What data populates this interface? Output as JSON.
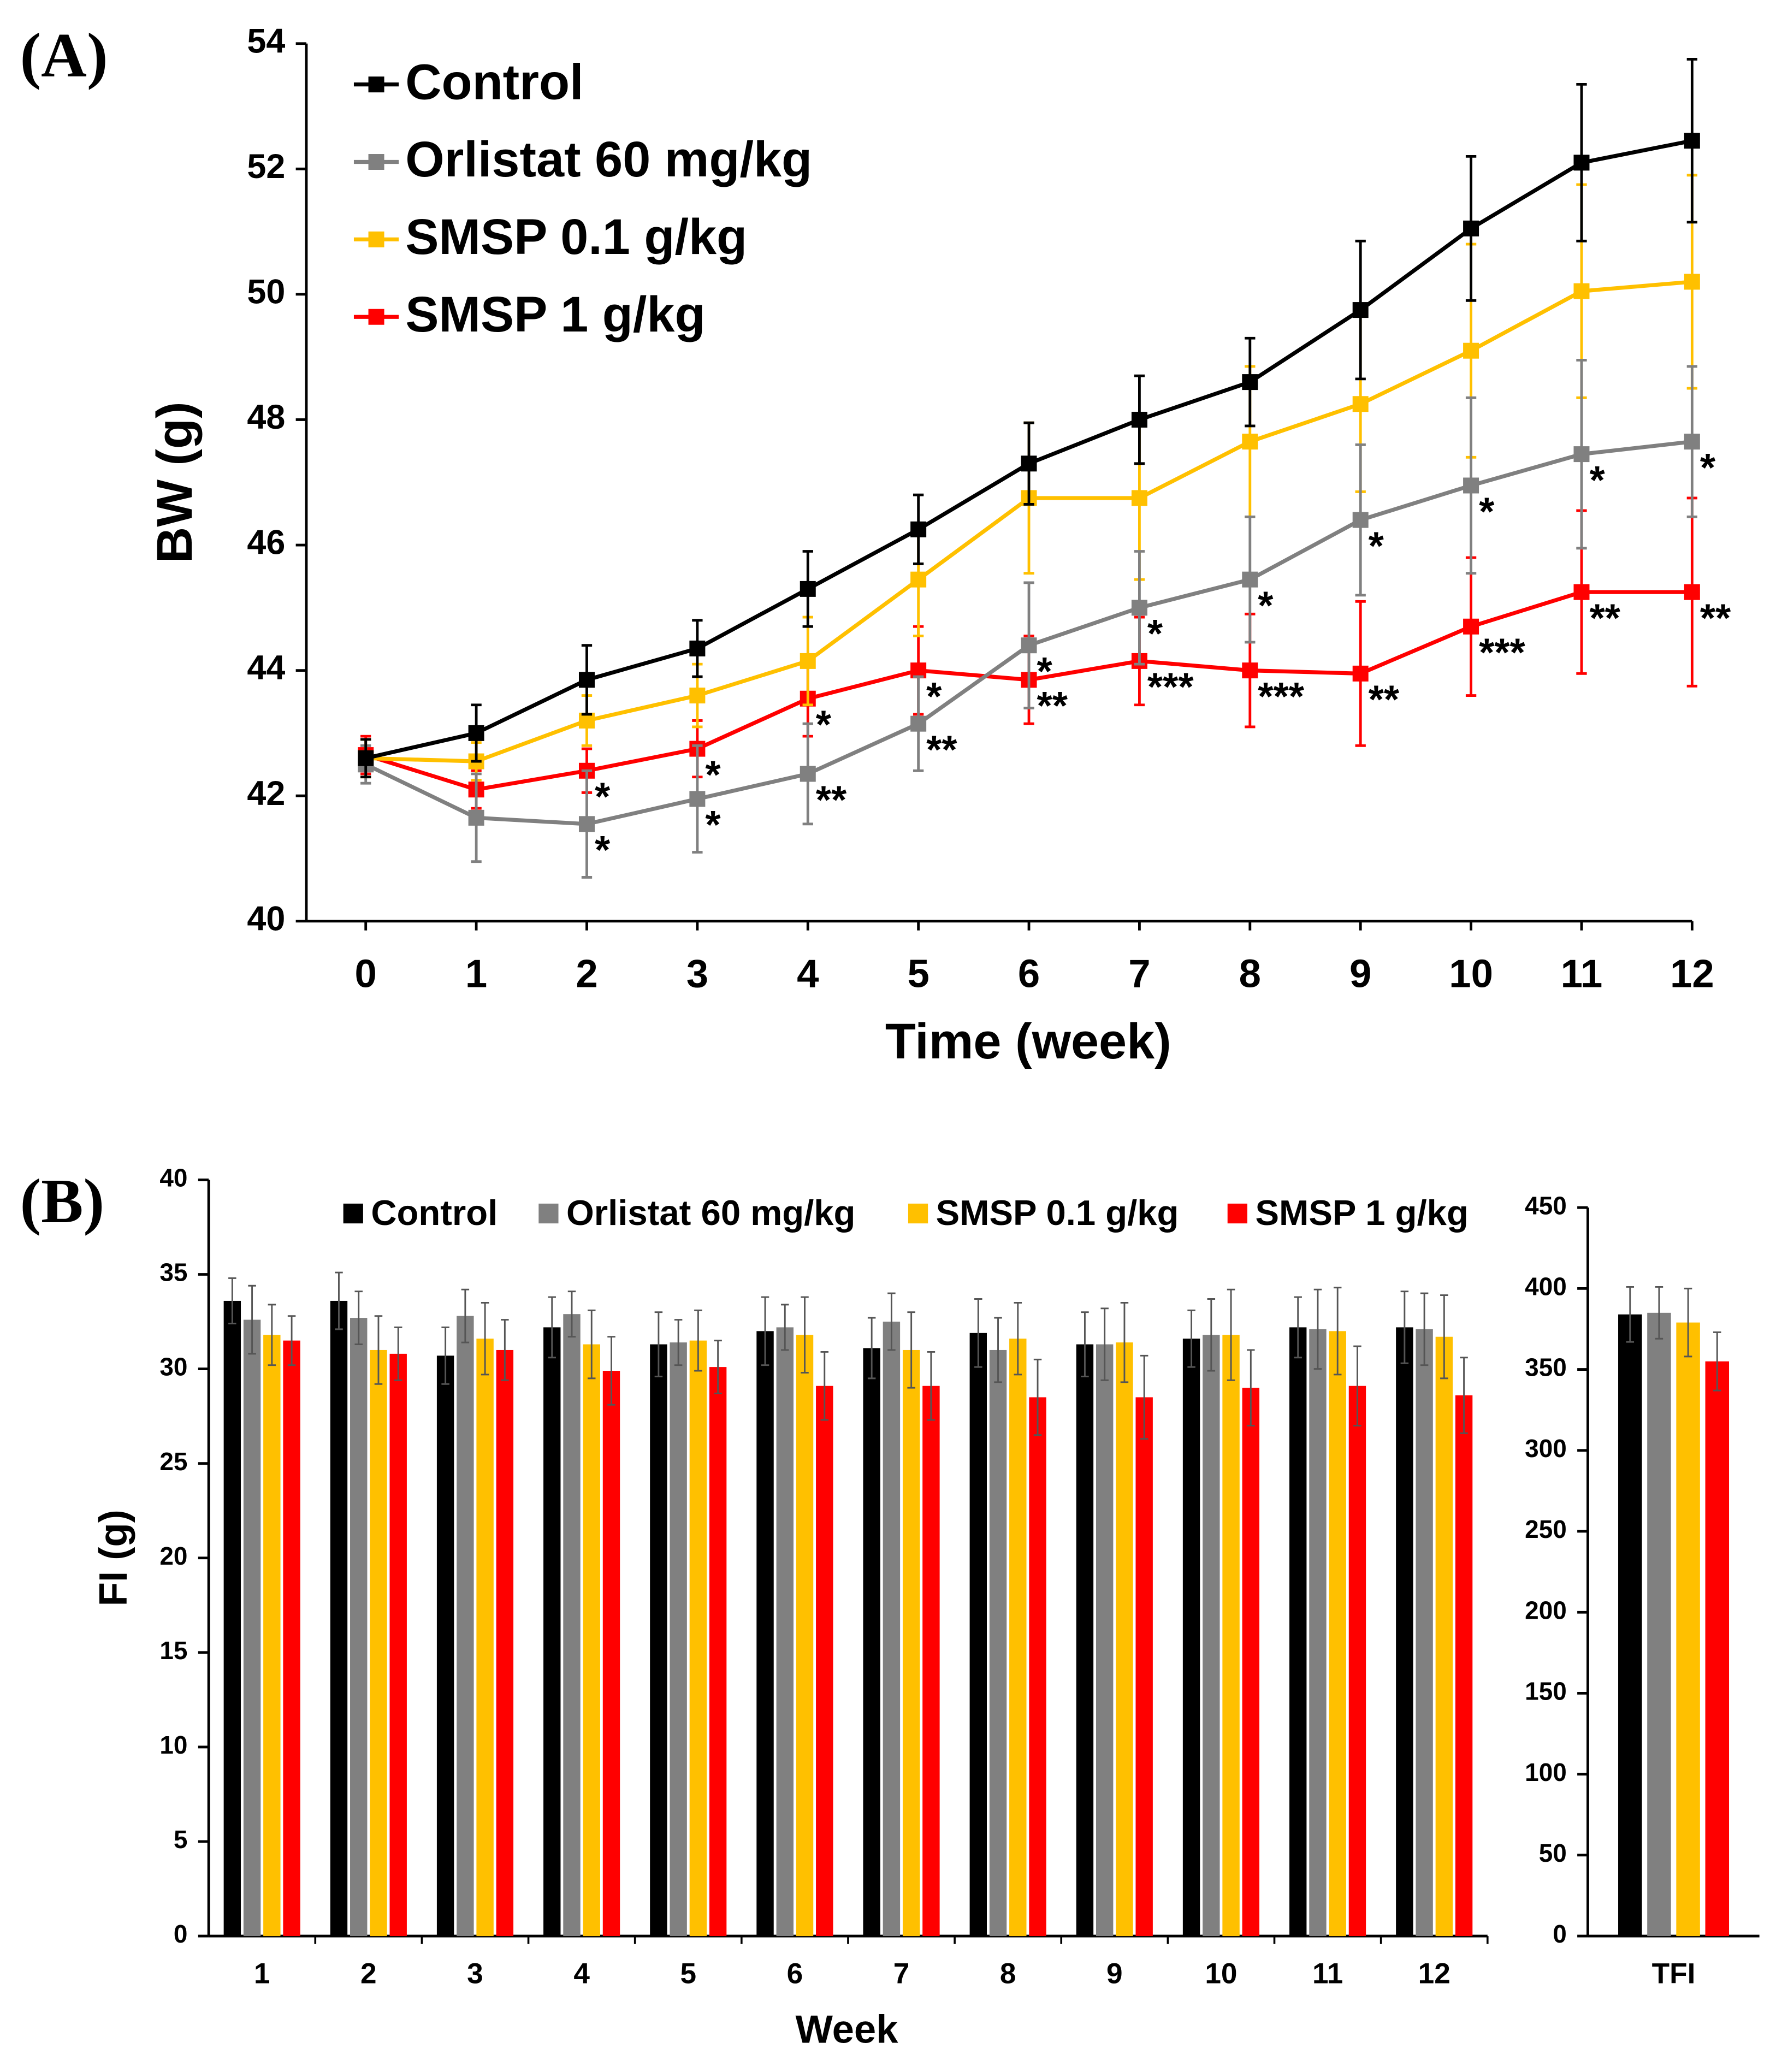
{
  "chart_data": [
    {
      "type": "line",
      "panel": "(A)",
      "x_label": "Time (week)",
      "y_label": "BW (g)",
      "x": [
        0,
        1,
        2,
        3,
        4,
        5,
        6,
        7,
        8,
        9,
        10,
        11,
        12
      ],
      "ylim": [
        40,
        54
      ],
      "yticks": [
        40,
        42,
        44,
        46,
        48,
        50,
        52,
        54
      ],
      "legend": "upper left",
      "series": [
        {
          "name": "Control",
          "color": "#000000",
          "values": [
            42.6,
            43.0,
            43.85,
            44.35,
            45.3,
            46.25,
            47.3,
            48.0,
            48.6,
            49.75,
            51.05,
            52.1,
            52.45
          ],
          "errors": [
            0.3,
            0.45,
            0.55,
            0.45,
            0.6,
            0.55,
            0.65,
            0.7,
            0.7,
            1.1,
            1.15,
            1.25,
            1.3
          ]
        },
        {
          "name": "Orlistat 60 mg/kg",
          "color": "#808080",
          "values": [
            42.5,
            41.65,
            41.55,
            41.95,
            42.35,
            43.15,
            44.4,
            45.0,
            45.45,
            46.4,
            46.95,
            47.45,
            47.65
          ],
          "errors": [
            0.3,
            0.7,
            0.85,
            0.85,
            0.8,
            0.75,
            1.0,
            0.9,
            1.0,
            1.2,
            1.4,
            1.5,
            1.2
          ],
          "significance": [
            null,
            null,
            "*",
            "*",
            "**",
            "**",
            "*",
            "*",
            "*",
            "*",
            "*",
            "*",
            "*"
          ]
        },
        {
          "name": "SMSP 0.1 g/kg",
          "color": "#ffc000",
          "values": [
            42.6,
            42.55,
            43.2,
            43.6,
            44.15,
            45.45,
            46.75,
            46.75,
            47.65,
            48.25,
            49.1,
            50.05,
            50.2
          ],
          "errors": [
            0.3,
            0.3,
            0.4,
            0.5,
            0.7,
            0.9,
            1.2,
            1.3,
            1.2,
            1.4,
            1.7,
            1.7,
            1.7
          ]
        },
        {
          "name": "SMSP 1 g/kg",
          "color": "#ff0000",
          "values": [
            42.65,
            42.1,
            42.4,
            42.75,
            43.55,
            44.0,
            43.85,
            44.15,
            44.0,
            43.95,
            44.7,
            45.25,
            45.25
          ],
          "errors": [
            0.3,
            0.3,
            0.35,
            0.45,
            0.6,
            0.7,
            0.7,
            0.7,
            0.9,
            1.15,
            1.1,
            1.3,
            1.5
          ],
          "significance": [
            null,
            null,
            "*",
            "*",
            "*",
            "*",
            "**",
            "***",
            "***",
            "**",
            "***",
            "**",
            "**"
          ]
        }
      ]
    },
    {
      "type": "bar",
      "panel": "(B)",
      "x_label": "Week",
      "y_label": "FI (g)",
      "categories": [
        "1",
        "2",
        "3",
        "4",
        "5",
        "6",
        "7",
        "8",
        "9",
        "10",
        "11",
        "12"
      ],
      "ylim": [
        0,
        40
      ],
      "yticks": [
        0,
        5,
        10,
        15,
        20,
        25,
        30,
        35,
        40
      ],
      "legend": "top",
      "series": [
        {
          "name": "Control",
          "color": "#000000",
          "values": [
            33.6,
            33.6,
            30.7,
            32.2,
            31.3,
            32.0,
            31.1,
            31.9,
            31.3,
            31.6,
            32.2,
            32.2
          ],
          "errors": [
            1.2,
            1.5,
            1.5,
            1.6,
            1.7,
            1.8,
            1.6,
            1.8,
            1.7,
            1.5,
            1.6,
            1.9
          ]
        },
        {
          "name": "Orlistat 60 mg/kg",
          "color": "#808080",
          "values": [
            32.6,
            32.7,
            32.8,
            32.9,
            31.4,
            32.2,
            32.5,
            31.0,
            31.3,
            31.8,
            32.1,
            32.1
          ],
          "errors": [
            1.8,
            1.4,
            1.4,
            1.2,
            1.2,
            1.2,
            1.5,
            1.7,
            1.9,
            1.9,
            2.1,
            1.9
          ]
        },
        {
          "name": "SMSP 0.1 g/kg",
          "color": "#ffc000",
          "values": [
            31.8,
            31.0,
            31.6,
            31.3,
            31.5,
            31.8,
            31.0,
            31.6,
            31.4,
            31.8,
            32.0,
            31.7
          ],
          "errors": [
            1.6,
            1.8,
            1.9,
            1.8,
            1.6,
            2.0,
            2.0,
            1.9,
            2.1,
            2.4,
            2.3,
            2.2
          ]
        },
        {
          "name": "SMSP 1 g/kg",
          "color": "#ff0000",
          "values": [
            31.5,
            30.8,
            31.0,
            29.9,
            30.1,
            29.1,
            29.1,
            28.5,
            28.5,
            29.0,
            29.1,
            28.6
          ],
          "errors": [
            1.3,
            1.4,
            1.6,
            1.8,
            1.4,
            1.8,
            1.8,
            2.0,
            2.2,
            2.0,
            2.1,
            2.0
          ]
        }
      ]
    },
    {
      "type": "bar",
      "categories": [
        "TFI"
      ],
      "ylim": [
        0,
        450
      ],
      "yticks": [
        0,
        50,
        100,
        150,
        200,
        250,
        300,
        350,
        400,
        450
      ],
      "series": [
        {
          "color": "#000000",
          "values": [
            384
          ],
          "errors": [
            17
          ]
        },
        {
          "color": "#808080",
          "values": [
            385
          ],
          "errors": [
            16
          ]
        },
        {
          "color": "#ffc000",
          "values": [
            379
          ],
          "errors": [
            21
          ]
        },
        {
          "color": "#ff0000",
          "values": [
            355
          ],
          "errors": [
            18
          ]
        }
      ]
    }
  ]
}
